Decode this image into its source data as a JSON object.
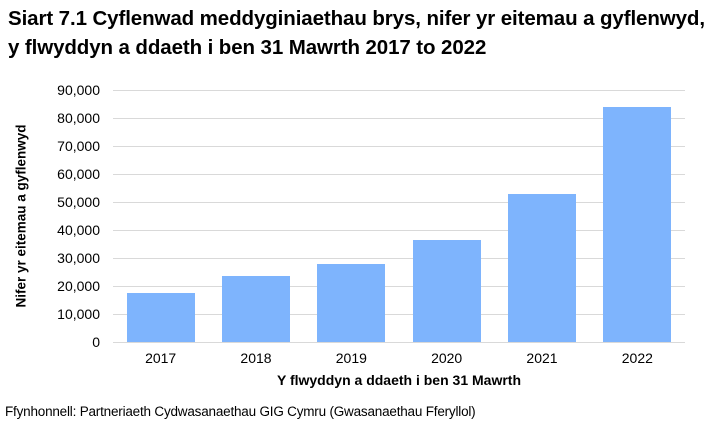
{
  "title": "Siart 7.1 Cyflenwad meddyginiaethau brys, nifer yr eitemau a gyflenwyd, y flwyddyn a ddaeth i ben 31 Mawrth 2017 to 2022",
  "source": "Ffynhonnell: Partneriaeth Cydwasanaethau GIG Cymru (Gwasanaethau Fferyllol)",
  "colors": {
    "bar": "#7eb4fd",
    "gridline": "#d9d9d9"
  },
  "chart_data": {
    "type": "bar",
    "title": "Siart 7.1 Cyflenwad meddyginiaethau brys, nifer yr eitemau a gyflenwyd, y flwyddyn a ddaeth i ben 31 Mawrth 2017 to 2022",
    "xlabel": "Y flwyddyn a ddaeth i ben 31 Mawrth",
    "ylabel": "Nifer yr eitemau a gyflenwyd",
    "categories": [
      "2017",
      "2018",
      "2019",
      "2020",
      "2021",
      "2022"
    ],
    "values": [
      17500,
      23600,
      27900,
      36400,
      52900,
      84000
    ],
    "ylim": [
      0,
      90000
    ],
    "yticks": [
      0,
      10000,
      20000,
      30000,
      40000,
      50000,
      60000,
      70000,
      80000,
      90000
    ],
    "ytick_labels": [
      "0",
      "10,000",
      "20,000",
      "30,000",
      "40,000",
      "50,000",
      "60,000",
      "70,000",
      "80,000",
      "90,000"
    ],
    "grid": true,
    "legend": null
  }
}
